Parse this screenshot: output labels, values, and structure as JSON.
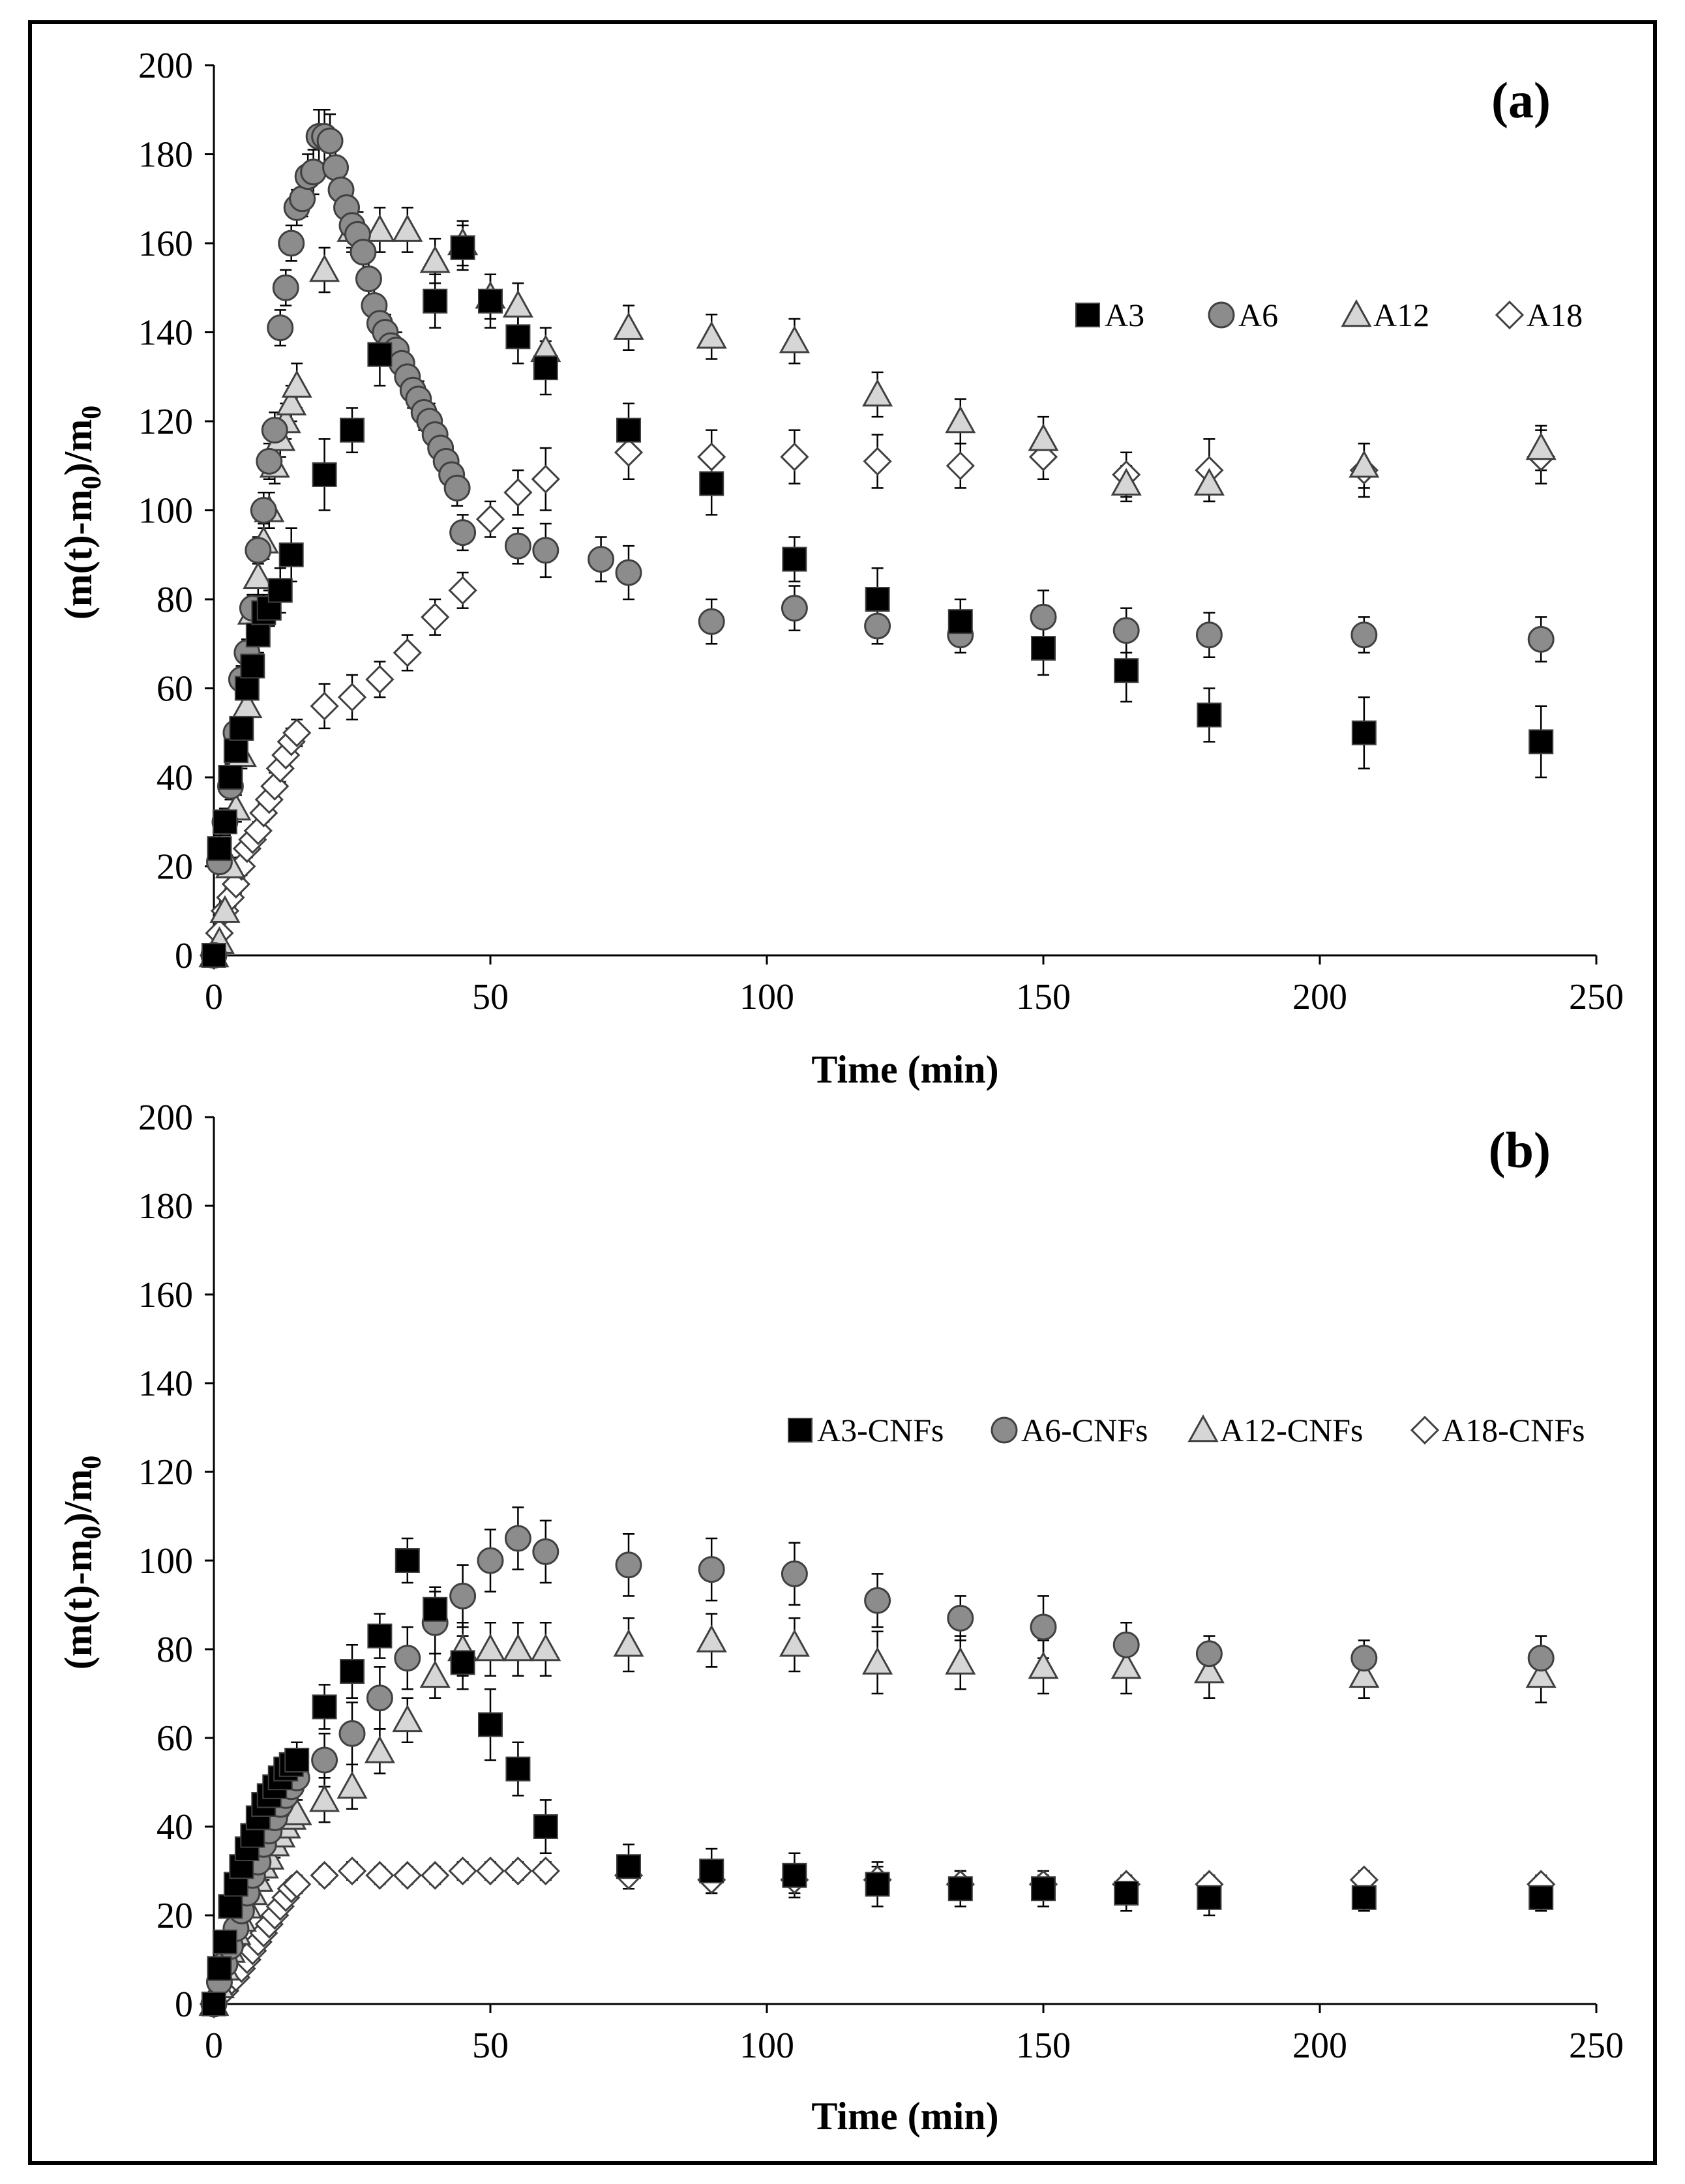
{
  "colors": {
    "A3": "#000000",
    "A6": "#8c8c8c",
    "A12": "#d6d6d6",
    "A18": "#ffffff",
    "marker_edge": "#404040",
    "error_bar": "#000000",
    "frame": "#000000"
  },
  "chart_data": [
    {
      "type": "scatter",
      "panel_label": "(a)",
      "xlabel": "Time (min)",
      "ylabel_parts": {
        "a": "(m(t)-m",
        "b": "0",
        "c": ")/m",
        "d": "0"
      },
      "xlim": [
        0,
        250
      ],
      "ylim": [
        0,
        200
      ],
      "xticks": [
        0,
        50,
        100,
        150,
        200,
        250
      ],
      "yticks": [
        0,
        20,
        40,
        60,
        80,
        100,
        120,
        140,
        160,
        180,
        200
      ],
      "legend_position": "top-right",
      "series": [
        {
          "name": "A3",
          "marker": "square",
          "color_key": "A3",
          "x": [
            0,
            1,
            2,
            3,
            4,
            5,
            6,
            7,
            8,
            9,
            10,
            12,
            14,
            20,
            25,
            30,
            40,
            45,
            50,
            55,
            60,
            75,
            90,
            105,
            120,
            135,
            150,
            165,
            180,
            208,
            240
          ],
          "y": [
            0,
            24,
            30,
            40,
            46,
            51,
            60,
            65,
            72,
            77,
            78,
            82,
            90,
            108,
            118,
            135,
            147,
            159,
            147,
            139,
            132,
            118,
            106,
            89,
            80,
            75,
            69,
            64,
            54,
            50,
            48
          ],
          "err": [
            1,
            3,
            3,
            3,
            3,
            3,
            4,
            4,
            4,
            4,
            4,
            5,
            6,
            8,
            5,
            7,
            6,
            5,
            6,
            6,
            6,
            6,
            7,
            5,
            7,
            5,
            6,
            7,
            6,
            8,
            8
          ]
        },
        {
          "name": "A6",
          "marker": "circle",
          "color_key": "A6",
          "x": [
            0,
            1,
            2,
            3,
            4,
            5,
            6,
            7,
            8,
            9,
            10,
            11,
            12,
            13,
            14,
            15,
            16,
            17,
            18,
            19,
            20,
            21,
            22,
            23,
            24,
            25,
            26,
            27,
            28,
            29,
            30,
            31,
            32,
            33,
            34,
            35,
            36,
            37,
            38,
            39,
            40,
            41,
            42,
            43,
            44,
            45,
            55,
            60,
            70,
            75,
            90,
            105,
            120,
            135,
            150,
            165,
            180,
            208,
            240
          ],
          "y": [
            0,
            21,
            30,
            38,
            50,
            62,
            68,
            78,
            91,
            100,
            111,
            118,
            141,
            150,
            160,
            168,
            170,
            175,
            176,
            184,
            184,
            183,
            177,
            172,
            168,
            164,
            162,
            158,
            152,
            146,
            142,
            140,
            137,
            136,
            133,
            130,
            127,
            125,
            122,
            120,
            117,
            114,
            111,
            108,
            105,
            95,
            92,
            91,
            89,
            86,
            75,
            78,
            74,
            72,
            76,
            73,
            72,
            72,
            71
          ],
          "err": [
            1,
            2,
            2,
            3,
            3,
            3,
            3,
            3,
            3,
            4,
            4,
            4,
            4,
            4,
            4,
            4,
            4,
            5,
            5,
            6,
            6,
            6,
            6,
            5,
            5,
            5,
            5,
            5,
            5,
            5,
            5,
            4,
            4,
            4,
            4,
            4,
            4,
            4,
            4,
            4,
            4,
            4,
            4,
            4,
            4,
            4,
            4,
            6,
            5,
            6,
            5,
            5,
            4,
            4,
            6,
            5,
            5,
            4,
            5
          ]
        },
        {
          "name": "A12",
          "marker": "triangle",
          "color_key": "A12",
          "x": [
            0,
            1,
            2,
            3,
            4,
            5,
            6,
            7,
            8,
            9,
            10,
            11,
            12,
            13,
            14,
            15,
            20,
            25,
            30,
            35,
            40,
            45,
            50,
            55,
            60,
            75,
            90,
            105,
            120,
            135,
            150,
            165,
            180,
            208,
            240
          ],
          "y": [
            0,
            3,
            10,
            20,
            33,
            45,
            56,
            77,
            85,
            93,
            100,
            110,
            116,
            120,
            124,
            128,
            154,
            163,
            163,
            163,
            156,
            160,
            148,
            146,
            136,
            141,
            139,
            138,
            126,
            120,
            116,
            106,
            106,
            110,
            114
          ],
          "err": [
            1,
            1,
            2,
            2,
            3,
            3,
            3,
            4,
            4,
            4,
            4,
            4,
            4,
            4,
            4,
            5,
            5,
            5,
            5,
            5,
            5,
            5,
            5,
            5,
            5,
            5,
            5,
            5,
            5,
            5,
            5,
            4,
            4,
            5,
            5
          ]
        },
        {
          "name": "A18",
          "marker": "diamond",
          "color_key": "A18",
          "x": [
            0,
            1,
            2,
            3,
            4,
            5,
            6,
            7,
            8,
            9,
            10,
            11,
            12,
            13,
            14,
            15,
            20,
            25,
            30,
            35,
            40,
            45,
            50,
            55,
            60,
            75,
            90,
            105,
            120,
            135,
            150,
            165,
            180,
            208,
            240
          ],
          "y": [
            0,
            5,
            10,
            13,
            16,
            20,
            24,
            26,
            28,
            32,
            35,
            38,
            42,
            45,
            48,
            50,
            56,
            58,
            62,
            68,
            76,
            82,
            98,
            104,
            107,
            113,
            112,
            112,
            111,
            110,
            112,
            108,
            109,
            109,
            112
          ],
          "err": [
            1,
            1,
            2,
            2,
            2,
            2,
            2,
            2,
            2,
            2,
            3,
            3,
            3,
            3,
            3,
            3,
            5,
            5,
            4,
            4,
            4,
            4,
            4,
            5,
            7,
            6,
            6,
            6,
            6,
            5,
            5,
            5,
            7,
            6,
            6
          ]
        }
      ]
    },
    {
      "type": "scatter",
      "panel_label": "(b)",
      "xlabel": "Time (min)",
      "ylabel_parts": {
        "a": "(m(t)-m",
        "b": "0",
        "c": ")/m",
        "d": "0"
      },
      "xlim": [
        0,
        250
      ],
      "ylim": [
        0,
        200
      ],
      "xticks": [
        0,
        50,
        100,
        150,
        200,
        250
      ],
      "yticks": [
        0,
        20,
        40,
        60,
        80,
        100,
        120,
        140,
        160,
        180,
        200
      ],
      "legend_position": "top-right",
      "series": [
        {
          "name": "A3-CNFs",
          "marker": "square",
          "color_key": "A3",
          "x": [
            0,
            1,
            2,
            3,
            4,
            5,
            6,
            7,
            8,
            9,
            10,
            11,
            12,
            13,
            14,
            15,
            20,
            25,
            30,
            35,
            40,
            45,
            50,
            55,
            60,
            75,
            90,
            105,
            120,
            135,
            150,
            165,
            180,
            208,
            240
          ],
          "y": [
            0,
            8,
            14,
            22,
            27,
            31,
            35,
            38,
            42,
            45,
            47,
            49,
            51,
            53,
            54,
            55,
            67,
            75,
            83,
            100,
            89,
            77,
            63,
            53,
            40,
            31,
            30,
            29,
            27,
            26,
            26,
            25,
            24,
            24,
            24
          ],
          "err": [
            1,
            1,
            2,
            2,
            2,
            2,
            3,
            3,
            3,
            3,
            3,
            3,
            3,
            3,
            3,
            4,
            5,
            6,
            5,
            5,
            5,
            6,
            8,
            6,
            6,
            5,
            5,
            5,
            5,
            4,
            4,
            4,
            4,
            3,
            3
          ]
        },
        {
          "name": "A6-CNFs",
          "marker": "circle",
          "color_key": "A6",
          "x": [
            0,
            1,
            2,
            3,
            4,
            5,
            6,
            7,
            8,
            9,
            10,
            11,
            12,
            13,
            14,
            15,
            20,
            25,
            30,
            35,
            40,
            45,
            50,
            55,
            60,
            75,
            90,
            105,
            120,
            135,
            150,
            165,
            180,
            208,
            240
          ],
          "y": [
            0,
            5,
            9,
            13,
            17,
            21,
            25,
            29,
            32,
            36,
            39,
            42,
            45,
            47,
            49,
            51,
            55,
            61,
            69,
            78,
            86,
            92,
            100,
            105,
            102,
            99,
            98,
            97,
            91,
            87,
            85,
            81,
            79,
            78,
            78
          ],
          "err": [
            1,
            1,
            2,
            2,
            2,
            2,
            2,
            3,
            3,
            3,
            3,
            3,
            3,
            3,
            3,
            3,
            6,
            7,
            7,
            7,
            7,
            7,
            7,
            7,
            7,
            7,
            7,
            7,
            6,
            5,
            7,
            5,
            4,
            4,
            5
          ]
        },
        {
          "name": "A12-CNFs",
          "marker": "triangle",
          "color_key": "A12",
          "x": [
            0,
            1,
            2,
            3,
            4,
            5,
            6,
            7,
            8,
            9,
            10,
            11,
            12,
            13,
            14,
            15,
            20,
            25,
            30,
            35,
            40,
            45,
            50,
            55,
            60,
            75,
            90,
            105,
            120,
            135,
            150,
            165,
            180,
            208,
            240
          ],
          "y": [
            0,
            4,
            8,
            12,
            16,
            19,
            22,
            25,
            28,
            31,
            33,
            36,
            38,
            40,
            42,
            43,
            46,
            49,
            57,
            64,
            74,
            80,
            80,
            80,
            80,
            81,
            82,
            81,
            77,
            77,
            76,
            76,
            75,
            74,
            74
          ],
          "err": [
            1,
            1,
            2,
            2,
            2,
            2,
            2,
            2,
            2,
            3,
            3,
            3,
            3,
            3,
            3,
            3,
            5,
            5,
            5,
            5,
            5,
            6,
            6,
            6,
            6,
            6,
            6,
            6,
            7,
            6,
            6,
            6,
            6,
            5,
            6
          ]
        },
        {
          "name": "A18-CNFs",
          "marker": "diamond",
          "color_key": "A18",
          "x": [
            0,
            1,
            2,
            3,
            4,
            5,
            6,
            7,
            8,
            9,
            10,
            11,
            12,
            13,
            14,
            15,
            20,
            25,
            30,
            35,
            40,
            45,
            50,
            55,
            60,
            75,
            90,
            105,
            120,
            135,
            150,
            165,
            180,
            208,
            240
          ],
          "y": [
            0,
            2,
            3,
            5,
            6,
            8,
            10,
            12,
            14,
            16,
            18,
            20,
            22,
            24,
            26,
            27,
            29,
            30,
            29,
            29,
            29,
            30,
            30,
            30,
            30,
            29,
            28,
            28,
            28,
            27,
            27,
            27,
            27,
            28,
            27
          ],
          "err": [
            1,
            1,
            1,
            1,
            1,
            1,
            1,
            1,
            2,
            2,
            2,
            2,
            2,
            2,
            2,
            2,
            2,
            2,
            2,
            2,
            2,
            2,
            2,
            2,
            2,
            3,
            3,
            3,
            3,
            3,
            2,
            2,
            2,
            2,
            2
          ]
        }
      ]
    }
  ]
}
